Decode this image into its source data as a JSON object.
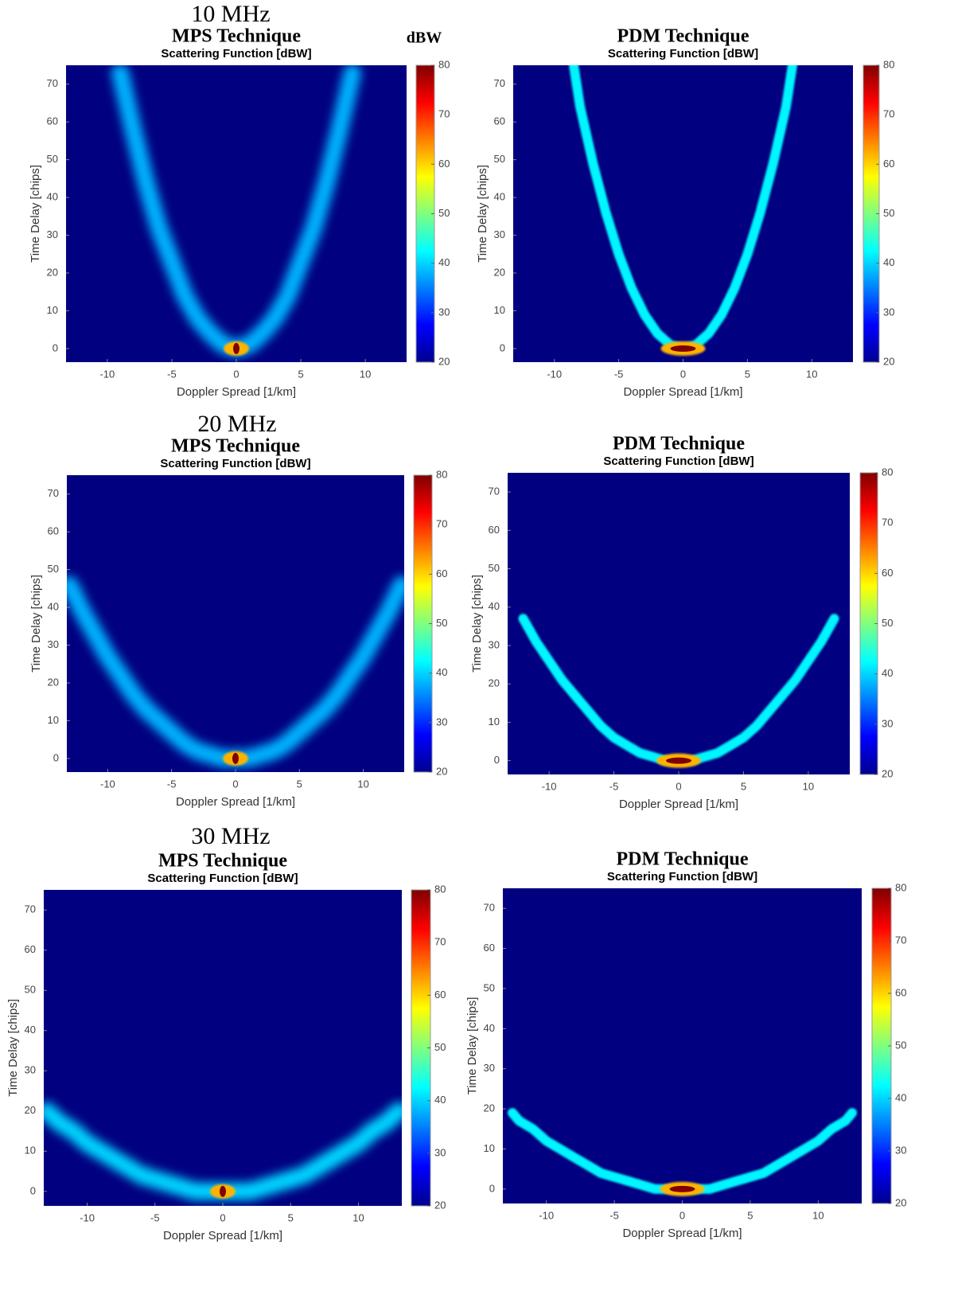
{
  "figure": {
    "row_titles": [
      "10 MHz",
      "20 MHz",
      "30 MHz"
    ],
    "colorbar_label": "dBW"
  },
  "chart_data": [
    {
      "type": "heatmap",
      "title": "MPS Technique",
      "subtitle": "Scattering Function [dBW]",
      "xlabel": "Doppler Spread [1/km]",
      "ylabel": "Time Delay [chips]",
      "xlim": [
        -13.2,
        13.2
      ],
      "ylim": [
        -3.6,
        75
      ],
      "xticks": [
        -10,
        -5,
        0,
        5,
        10
      ],
      "yticks": [
        0,
        10,
        20,
        30,
        40,
        50,
        60,
        70
      ],
      "clim": [
        20,
        80
      ],
      "cticks": [
        20,
        30,
        40,
        50,
        60,
        70,
        80
      ],
      "ridge": {
        "x": [
          -9,
          -8,
          -7,
          -6,
          -5,
          -4,
          -3,
          -2,
          -1,
          0,
          1,
          2,
          3,
          4,
          5,
          6,
          7,
          8,
          9
        ],
        "y": [
          73,
          58,
          44,
          32,
          23,
          14,
          8,
          4,
          1,
          0,
          1,
          4,
          8,
          14,
          23,
          32,
          44,
          58,
          73
        ],
        "level": 38
      },
      "peak": {
        "x": 0,
        "y": 0,
        "value": 80
      }
    },
    {
      "type": "heatmap",
      "title": "PDM Technique",
      "subtitle": "Scattering Function [dBW]",
      "xlabel": "Doppler Spread [1/km]",
      "ylabel": "Time Delay [chips]",
      "xlim": [
        -13.2,
        13.2
      ],
      "ylim": [
        -3.6,
        75
      ],
      "xticks": [
        -10,
        -5,
        0,
        5,
        10
      ],
      "yticks": [
        0,
        10,
        20,
        30,
        40,
        50,
        60,
        70
      ],
      "clim": [
        20,
        80
      ],
      "cticks": [
        20,
        30,
        40,
        50,
        60,
        70,
        80
      ],
      "ridge": {
        "x": [
          -8.5,
          -8,
          -7,
          -6,
          -5,
          -4,
          -3,
          -2,
          -1,
          0,
          1,
          2,
          3,
          4,
          5,
          6,
          7,
          8,
          8.5
        ],
        "y": [
          75,
          64,
          49,
          36,
          25,
          16,
          9,
          4,
          1,
          0,
          1,
          4,
          9,
          16,
          25,
          36,
          49,
          64,
          75
        ],
        "level": 42
      },
      "peak": {
        "x": 0,
        "y": 0,
        "value": 80
      }
    },
    {
      "type": "heatmap",
      "title": "MPS Technique",
      "subtitle": "Scattering Function [dBW]",
      "xlabel": "Doppler Spread [1/km]",
      "ylabel": "Time Delay [chips]",
      "xlim": [
        -13.2,
        13.2
      ],
      "ylim": [
        -3.6,
        75
      ],
      "xticks": [
        -10,
        -5,
        0,
        5,
        10
      ],
      "yticks": [
        0,
        10,
        20,
        30,
        40,
        50,
        60,
        70
      ],
      "clim": [
        20,
        80
      ],
      "cticks": [
        20,
        30,
        40,
        50,
        60,
        70,
        80
      ],
      "ridge": {
        "x": [
          -13,
          -12,
          -11,
          -10,
          -9,
          -8,
          -7,
          -6,
          -5,
          -4,
          -3,
          -2,
          -1,
          0,
          1,
          2,
          3,
          4,
          5,
          6,
          7,
          8,
          9,
          10,
          11,
          12,
          13
        ],
        "y": [
          46,
          39,
          33,
          27,
          22,
          17,
          13,
          10,
          7,
          4,
          2,
          1,
          0,
          0,
          0,
          1,
          2,
          4,
          7,
          10,
          13,
          17,
          22,
          27,
          33,
          39,
          46
        ],
        "level": 38
      },
      "peak": {
        "x": 0,
        "y": 0,
        "value": 80
      }
    },
    {
      "type": "heatmap",
      "title": "PDM Technique",
      "subtitle": "Scattering Function [dBW]",
      "xlabel": "Doppler Spread [1/km]",
      "ylabel": "Time Delay [chips]",
      "xlim": [
        -13.2,
        13.2
      ],
      "ylim": [
        -3.6,
        75
      ],
      "xticks": [
        -10,
        -5,
        0,
        5,
        10
      ],
      "yticks": [
        0,
        10,
        20,
        30,
        40,
        50,
        60,
        70
      ],
      "clim": [
        20,
        80
      ],
      "cticks": [
        20,
        30,
        40,
        50,
        60,
        70,
        80
      ],
      "ridge": {
        "x": [
          -12,
          -11,
          -10,
          -9,
          -8,
          -7,
          -6,
          -5,
          -4,
          -3,
          -2,
          -1,
          0,
          1,
          2,
          3,
          4,
          5,
          6,
          7,
          8,
          9,
          10,
          11,
          12
        ],
        "y": [
          37,
          31,
          26,
          21,
          17,
          13,
          9,
          6,
          4,
          2,
          1,
          0,
          0,
          0,
          1,
          2,
          4,
          6,
          9,
          13,
          17,
          21,
          26,
          31,
          37
        ],
        "level": 42
      },
      "peak": {
        "x": 0,
        "y": 0,
        "value": 80
      }
    },
    {
      "type": "heatmap",
      "title": "MPS Technique",
      "subtitle": "Scattering Function [dBW]",
      "xlabel": "Doppler Spread [1/km]",
      "ylabel": "Time Delay [chips]",
      "xlim": [
        -13.2,
        13.2
      ],
      "ylim": [
        -3.6,
        75
      ],
      "xticks": [
        -10,
        -5,
        0,
        5,
        10
      ],
      "yticks": [
        0,
        10,
        20,
        30,
        40,
        50,
        60,
        70
      ],
      "clim": [
        20,
        80
      ],
      "cticks": [
        20,
        30,
        40,
        50,
        60,
        70,
        80
      ],
      "ridge": {
        "x": [
          -13,
          -12,
          -11,
          -10,
          -9,
          -8,
          -7,
          -6,
          -5,
          -4,
          -3,
          -2,
          -1,
          0,
          1,
          2,
          3,
          4,
          5,
          6,
          7,
          8,
          9,
          10,
          11,
          12,
          13
        ],
        "y": [
          20,
          17,
          15,
          12,
          10,
          8,
          6,
          4,
          3,
          2,
          1,
          0,
          0,
          0,
          0,
          0,
          1,
          2,
          3,
          4,
          6,
          8,
          10,
          12,
          15,
          17,
          20
        ],
        "level": 40
      },
      "peak": {
        "x": 0,
        "y": 0,
        "value": 80
      }
    },
    {
      "type": "heatmap",
      "title": "PDM Technique",
      "subtitle": "Scattering Function [dBW]",
      "xlabel": "Doppler Spread [1/km]",
      "ylabel": "Time Delay [chips]",
      "xlim": [
        -13.2,
        13.2
      ],
      "ylim": [
        -3.6,
        75
      ],
      "xticks": [
        -10,
        -5,
        0,
        5,
        10
      ],
      "yticks": [
        0,
        10,
        20,
        30,
        40,
        50,
        60,
        70
      ],
      "clim": [
        20,
        80
      ],
      "cticks": [
        20,
        30,
        40,
        50,
        60,
        70,
        80
      ],
      "ridge": {
        "x": [
          -12.5,
          -12,
          -11,
          -10,
          -9,
          -8,
          -7,
          -6,
          -5,
          -4,
          -3,
          -2,
          -1,
          0,
          1,
          2,
          3,
          4,
          5,
          6,
          7,
          8,
          9,
          10,
          11,
          12,
          12.5
        ],
        "y": [
          19,
          17,
          15,
          12,
          10,
          8,
          6,
          4,
          3,
          2,
          1,
          0,
          0,
          0,
          0,
          0,
          1,
          2,
          3,
          4,
          6,
          8,
          10,
          12,
          15,
          17,
          19
        ],
        "level": 42
      },
      "peak": {
        "x": 0,
        "y": 0,
        "value": 80
      }
    }
  ]
}
